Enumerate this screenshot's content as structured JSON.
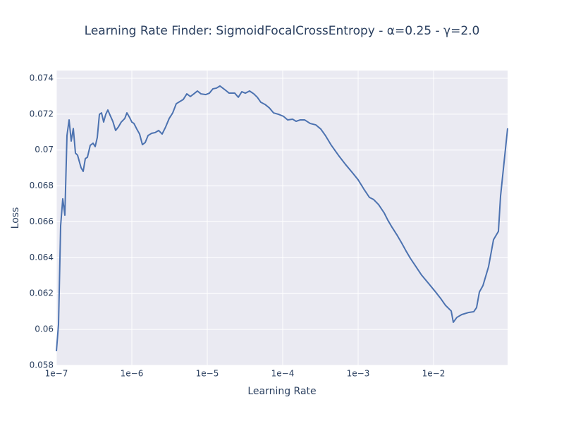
{
  "chart_data": {
    "type": "line",
    "title": "Learning Rate Finder: SigmoidFocalCrossEntropy - α=0.25 - γ=2.0",
    "x_label": "Learning Rate",
    "y_label": "Loss",
    "log_x": true,
    "grid": true,
    "background": "#eaeaf2",
    "xlim": [
      1e-07,
      0.0958
    ],
    "ylim": [
      0.058,
      0.07443
    ],
    "xticks": [
      {
        "value": 1e-07,
        "label": "1e−7"
      },
      {
        "value": 1e-06,
        "label": "1e−6"
      },
      {
        "value": 1e-05,
        "label": "1e−5"
      },
      {
        "value": 0.0001,
        "label": "1e−4"
      },
      {
        "value": 0.001,
        "label": "1e−3"
      },
      {
        "value": 0.01,
        "label": "1e−2"
      }
    ],
    "yticks": [
      0.058,
      0.06,
      0.062,
      0.064,
      0.066,
      0.068,
      0.07,
      0.072,
      0.074
    ],
    "x": [
      1e-07,
      1.067e-07,
      1.138e-07,
      1.214e-07,
      1.295e-07,
      1.381e-07,
      1.473e-07,
      1.572e-07,
      1.676e-07,
      1.788e-07,
      1.908e-07,
      2.124e-07,
      2.265e-07,
      2.417e-07,
      2.578e-07,
      2.809e-07,
      3.062e-07,
      3.266e-07,
      3.484e-07,
      3.717e-07,
      3.965e-07,
      4.229e-07,
      4.511e-07,
      4.812e-07,
      5.133e-07,
      5.594e-07,
      6.095e-07,
      6.643e-07,
      7.24e-07,
      8.064e-07,
      8.603e-07,
      9.376e-07,
      1e-06,
      1.067e-06,
      1.163e-06,
      1.267e-06,
      1.381e-06,
      1.505e-06,
      1.641e-06,
      1.827e-06,
      2.034e-06,
      2.265e-06,
      2.522e-06,
      2.809e-06,
      3.128e-06,
      3.484e-06,
      3.88e-06,
      4.321e-06,
      4.812e-06,
      5.358e-06,
      5.967e-06,
      6.643e-06,
      7.399e-06,
      8.24e-06,
      9.58e-06,
      1.067e-05,
      1.188e-05,
      1.323e-05,
      1.473e-05,
      1.606e-05,
      1.75e-05,
      1.949e-05,
      2.315e-05,
      2.578e-05,
      2.871e-05,
      3.197e-05,
      3.636e-05,
      4.139e-05,
      4.609e-05,
      5.133e-05,
      5.84e-05,
      6.643e-05,
      7.559e-05,
      8.789e-05,
      0.0001022,
      0.0001163,
      0.0001352,
      0.0001505,
      0.0001713,
      0.0001949,
      0.0002315,
      0.000275,
      0.0003197,
      0.0003717,
      0.0004415,
      0.0005474,
      0.000679,
      0.000842,
      0.001,
      0.001188,
      0.001411,
      0.001606,
      0.001866,
      0.002217,
      0.002469,
      0.002809,
      0.003266,
      0.003797,
      0.004321,
      0.004916,
      0.00584,
      0.006937,
      0.008603,
      0.01044,
      0.0124,
      0.01442,
      0.01713,
      0.01827,
      0.02034,
      0.02365,
      0.02934,
      0.03411,
      0.03717,
      0.0405,
      0.04511,
      0.05358,
      0.06228,
      0.0724,
      0.07725,
      0.08603,
      0.0958
    ],
    "series": [
      {
        "name": "Loss",
        "color": "#4c72b0",
        "values": [
          0.05879,
          0.06028,
          0.06578,
          0.06728,
          0.06637,
          0.07081,
          0.07168,
          0.0705,
          0.0712,
          0.06983,
          0.06971,
          0.06901,
          0.06881,
          0.06952,
          0.0696,
          0.07026,
          0.07038,
          0.07019,
          0.0707,
          0.07199,
          0.07207,
          0.07156,
          0.07199,
          0.07223,
          0.07195,
          0.0716,
          0.07109,
          0.07129,
          0.07156,
          0.07176,
          0.07207,
          0.0718,
          0.07156,
          0.07148,
          0.07117,
          0.07089,
          0.0703,
          0.07042,
          0.07081,
          0.07093,
          0.07097,
          0.07109,
          0.07089,
          0.07129,
          0.07176,
          0.07207,
          0.07258,
          0.0727,
          0.07282,
          0.07313,
          0.07298,
          0.07313,
          0.07329,
          0.07313,
          0.07309,
          0.07317,
          0.07341,
          0.07345,
          0.07357,
          0.07345,
          0.07333,
          0.07317,
          0.07317,
          0.07294,
          0.07325,
          0.07317,
          0.07329,
          0.07313,
          0.07294,
          0.07266,
          0.07254,
          0.07235,
          0.07207,
          0.07199,
          0.07188,
          0.07168,
          0.07172,
          0.0716,
          0.07168,
          0.07168,
          0.07148,
          0.0714,
          0.07117,
          0.07078,
          0.07026,
          0.06971,
          0.0692,
          0.06873,
          0.06834,
          0.06783,
          0.06736,
          0.06724,
          0.06696,
          0.06649,
          0.0661,
          0.0657,
          0.06527,
          0.0648,
          0.06437,
          0.06397,
          0.0635,
          0.06303,
          0.06256,
          0.06213,
          0.06173,
          0.06134,
          0.06103,
          0.0604,
          0.06067,
          0.06083,
          0.06095,
          0.06099,
          0.06122,
          0.06209,
          0.06244,
          0.0635,
          0.065,
          0.06547,
          0.06743,
          0.06932,
          0.07121
        ]
      }
    ]
  }
}
